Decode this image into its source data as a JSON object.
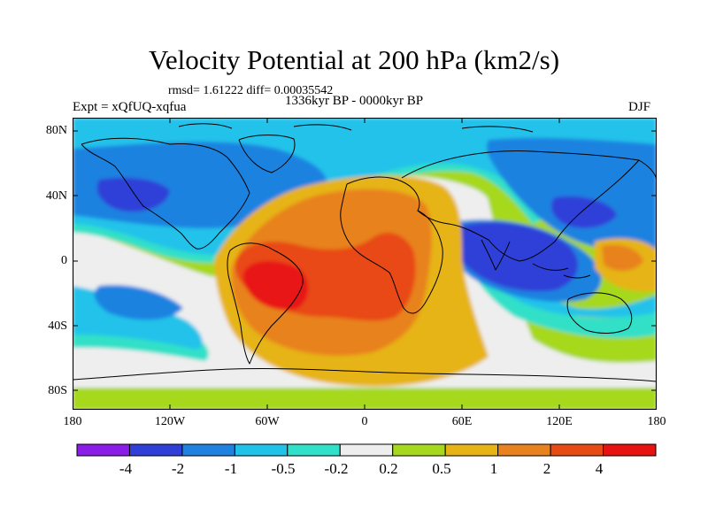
{
  "title": "Velocity Potential at 200 hPa (km2/s)",
  "stats": "rmsd= 1.61222 diff= 0.00035542",
  "period": "1336kyr BP - 0000kyr BP",
  "experiment": "Expt = xQfUQ-xqfua",
  "season": "DJF",
  "map": {
    "lat_labels": [
      "80N",
      "40N",
      "0",
      "40S",
      "80S"
    ],
    "lon_labels": [
      "180",
      "120W",
      "60W",
      "0",
      "60E",
      "120E",
      "180"
    ]
  },
  "colorbar": {
    "labels": [
      "-4",
      "-2",
      "-1",
      "-0.5",
      "-0.2",
      "0.2",
      "0.5",
      "1",
      "2",
      "4"
    ],
    "colors": [
      "#8a1ee8",
      "#2f3fd8",
      "#1f82e0",
      "#20c2ea",
      "#30e0c8",
      "#eeeeee",
      "#a6d81e",
      "#e6b414",
      "#e8821e",
      "#e84a14",
      "#e81212"
    ]
  }
}
